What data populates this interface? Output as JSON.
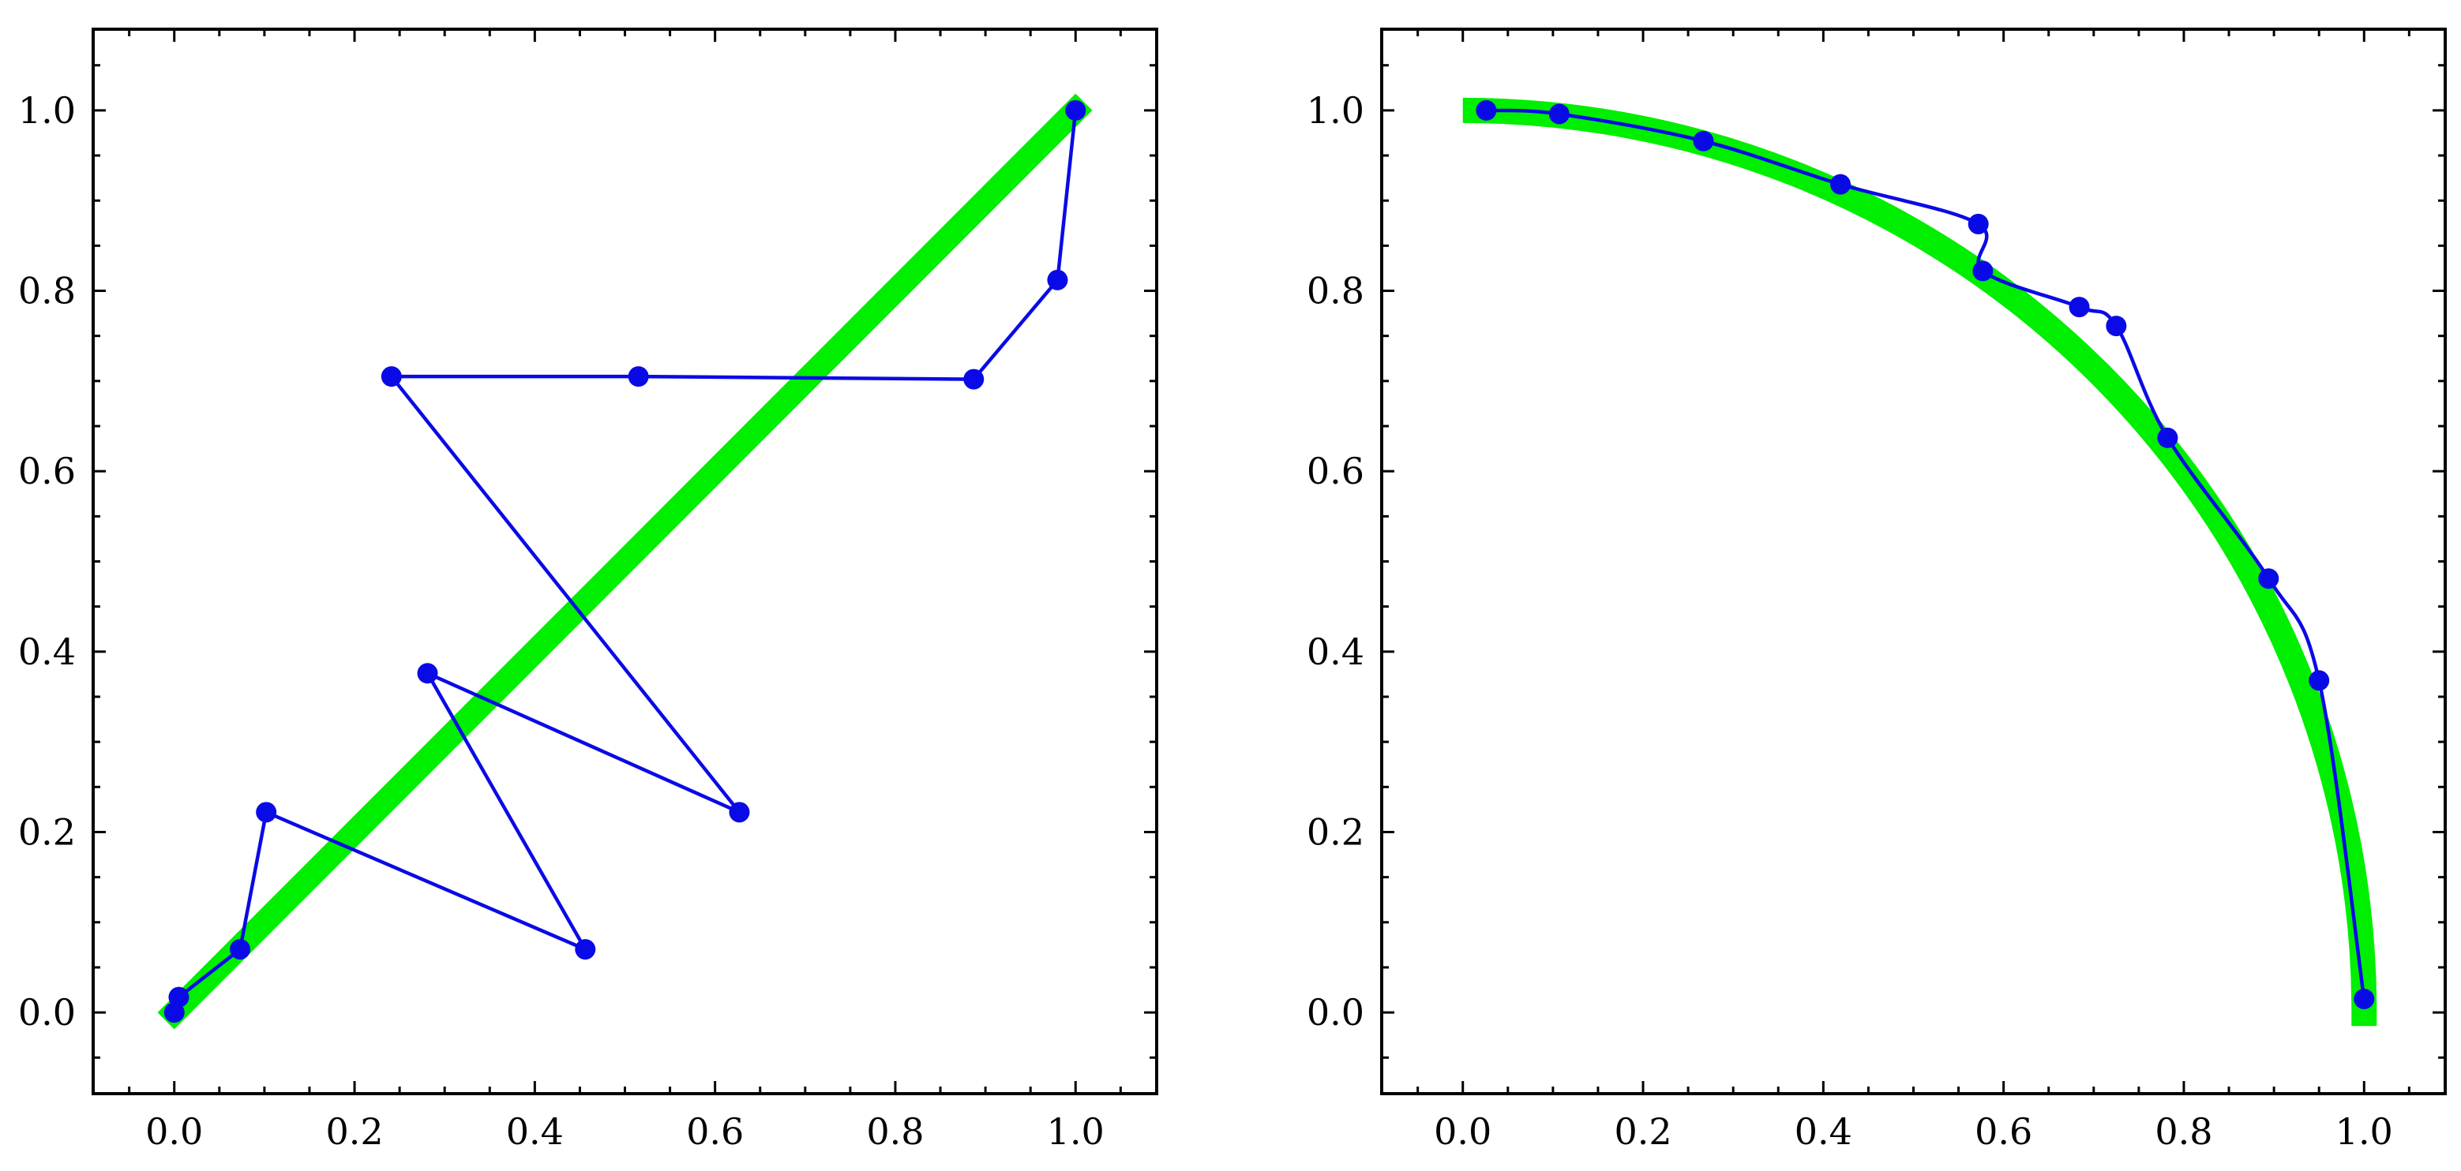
{
  "colors": {
    "reference": "#00ee00",
    "series": "#0a0ae6",
    "axes": "#000000"
  },
  "chart_data": [
    {
      "type": "line",
      "title": "",
      "xlabel": "",
      "ylabel": "",
      "xlim": [
        -0.09,
        1.09
      ],
      "ylim": [
        -0.09,
        1.09
      ],
      "xticks": [
        "0.0",
        "0.2",
        "0.4",
        "0.6",
        "0.8",
        "1.0"
      ],
      "yticks": [
        "0.0",
        "0.2",
        "0.4",
        "0.6",
        "0.8",
        "1.0"
      ],
      "grid": false,
      "reference": {
        "shape": "segment",
        "x": [
          0.0,
          1.0
        ],
        "y": [
          0.0,
          1.0
        ]
      },
      "series": [
        {
          "smooth": false,
          "x": [
            0.0,
            0.005,
            0.073,
            0.102,
            0.456,
            0.281,
            0.627,
            0.241,
            0.515,
            0.887,
            0.98,
            1.0
          ],
          "y": [
            0.0,
            0.017,
            0.07,
            0.222,
            0.07,
            0.376,
            0.222,
            0.705,
            0.705,
            0.702,
            0.812,
            1.0
          ]
        }
      ]
    },
    {
      "type": "line",
      "title": "",
      "xlabel": "",
      "ylabel": "",
      "xlim": [
        -0.09,
        1.09
      ],
      "ylim": [
        -0.09,
        1.09
      ],
      "xticks": [
        "0.0",
        "0.2",
        "0.4",
        "0.6",
        "0.8",
        "1.0"
      ],
      "yticks": [
        "0.0",
        "0.2",
        "0.4",
        "0.6",
        "0.8",
        "1.0"
      ],
      "grid": false,
      "reference": {
        "shape": "quarter-circle",
        "center": [
          0,
          0
        ],
        "radius": 1.0,
        "y_end": -0.015
      },
      "series": [
        {
          "smooth": true,
          "x": [
            0.026,
            0.107,
            0.267,
            0.419,
            0.572,
            0.577,
            0.684,
            0.725,
            0.782,
            0.894,
            0.95,
            1.0
          ],
          "y": [
            1.0,
            0.996,
            0.966,
            0.918,
            0.874,
            0.822,
            0.782,
            0.761,
            0.637,
            0.481,
            0.368,
            0.015
          ]
        }
      ]
    }
  ]
}
